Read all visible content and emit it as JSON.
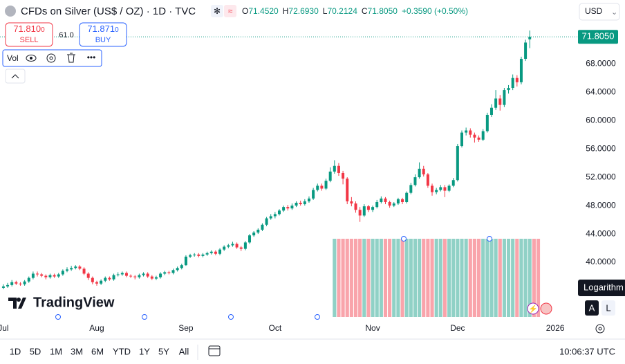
{
  "header": {
    "title": "CFDs on Silver (US$ / OZ) · 1D · TVC",
    "ohlc": [
      {
        "key": "O",
        "value": "71.4520"
      },
      {
        "key": "H",
        "value": "72.6930"
      },
      {
        "key": "L",
        "value": "70.2124"
      },
      {
        "key": "C",
        "value": "71.8050"
      }
    ],
    "change": "+0.3590 (+0.50%)",
    "currency": "USD"
  },
  "trade": {
    "sell_price": "71.810",
    "sell_price_small": "0",
    "sell_label": "SELL",
    "spread": "61.0",
    "buy_price": "71.871",
    "buy_price_small": "0",
    "buy_label": "BUY"
  },
  "legend": {
    "volume_label": "Vol"
  },
  "logo": "TradingView",
  "scale_buttons": {
    "tooltip": "Logarithm",
    "auto": "A",
    "log": "L"
  },
  "toolbar": {
    "ranges": [
      "1D",
      "5D",
      "1M",
      "3M",
      "6M",
      "YTD",
      "1Y",
      "5Y",
      "All"
    ],
    "clock": "10:06:37 UTC"
  },
  "chart_data": {
    "type": "candlestick",
    "up_color": "#089981",
    "down_color": "#f23645",
    "grid": false,
    "open": [
      36.4,
      36.6,
      36.8,
      37.2,
      37.0,
      36.9,
      37.3,
      37.8,
      38.4,
      38.3,
      38.1,
      37.9,
      38.2,
      38.0,
      38.3,
      38.8,
      39.0,
      39.2,
      39.4,
      39.1,
      38.4,
      37.8,
      37.2,
      37.0,
      37.4,
      37.8,
      37.6,
      38.2,
      38.3,
      38.5,
      38.1,
      38.0,
      37.9,
      38.2,
      38.4,
      38.0,
      37.7,
      37.9,
      38.4,
      38.6,
      38.5,
      38.9,
      39.2,
      39.6,
      40.8,
      41.0,
      41.1,
      40.9,
      41.1,
      41.3,
      41.5,
      41.2,
      41.8,
      42.2,
      42.4,
      42.6,
      42.1,
      41.9,
      42.8,
      43.8,
      44.2,
      44.6,
      45.3,
      46.2,
      46.5,
      46.8,
      47.3,
      47.8,
      47.6,
      48.0,
      48.4,
      48.2,
      48.6,
      49.0,
      50.2,
      50.8,
      50.4,
      51.5,
      52.8,
      53.6,
      52.6,
      51.8,
      48.6,
      48.3,
      47.4,
      46.6,
      47.9,
      47.4,
      47.8,
      48.5,
      49.0,
      48.5,
      48.0,
      48.3,
      48.9,
      48.5,
      49.8,
      50.9,
      52.0,
      53.2,
      52.4,
      50.8,
      49.9,
      50.2,
      50.6,
      50.1,
      50.8,
      51.6,
      56.4,
      58.3,
      58.6,
      58.0,
      57.6,
      57.3,
      58.5,
      60.8,
      61.8,
      63.1,
      62.2,
      64.3,
      64.6,
      66.0,
      65.4,
      68.7,
      71.452
    ],
    "high": [
      36.9,
      37.1,
      37.5,
      37.4,
      37.2,
      37.5,
      38.0,
      38.7,
      38.7,
      38.5,
      38.3,
      38.4,
      38.4,
      38.5,
      39.0,
      39.3,
      39.5,
      39.6,
      39.6,
      39.3,
      38.6,
      38.0,
      37.4,
      37.6,
      38.0,
      38.0,
      38.4,
      38.6,
      38.7,
      38.7,
      38.3,
      38.2,
      38.4,
      38.6,
      38.6,
      38.2,
      38.1,
      38.6,
      38.8,
      38.8,
      39.1,
      39.4,
      39.8,
      41.0,
      41.2,
      41.3,
      41.3,
      41.3,
      41.5,
      41.7,
      41.7,
      42.0,
      42.4,
      42.6,
      42.9,
      42.8,
      42.3,
      43.0,
      44.0,
      44.4,
      44.8,
      45.5,
      46.4,
      46.8,
      47.1,
      47.5,
      48.0,
      48.1,
      48.3,
      48.6,
      48.7,
      48.9,
      49.3,
      50.5,
      51.1,
      51.1,
      51.8,
      53.4,
      54.4,
      54.0,
      52.9,
      52.0,
      49.2,
      48.6,
      47.8,
      48.2,
      48.1,
      48.0,
      48.8,
      49.3,
      49.2,
      48.7,
      48.5,
      49.1,
      49.1,
      50.0,
      51.2,
      52.4,
      54.1,
      53.6,
      52.6,
      51.1,
      50.5,
      50.9,
      50.9,
      51.0,
      51.9,
      56.7,
      58.6,
      59.0,
      58.9,
      58.3,
      57.9,
      58.8,
      61.1,
      62.3,
      64.3,
      63.6,
      64.6,
      65.0,
      66.5,
      66.4,
      69.0,
      71.4,
      72.693
    ],
    "low": [
      36.2,
      36.4,
      36.6,
      36.8,
      36.7,
      36.7,
      37.1,
      37.6,
      38.0,
      37.9,
      37.6,
      37.7,
      37.8,
      37.8,
      38.1,
      38.6,
      38.8,
      39.0,
      38.9,
      38.2,
      37.5,
      36.9,
      36.7,
      36.8,
      37.2,
      37.4,
      37.4,
      38.0,
      38.1,
      37.9,
      37.8,
      37.6,
      37.7,
      38.0,
      37.8,
      37.5,
      37.5,
      37.7,
      38.2,
      38.3,
      38.3,
      38.7,
      39.0,
      39.5,
      40.6,
      40.8,
      40.7,
      40.7,
      40.9,
      41.1,
      41.0,
      41.0,
      41.6,
      42.0,
      42.2,
      41.9,
      41.6,
      41.7,
      42.6,
      43.6,
      44.0,
      44.4,
      45.1,
      46.0,
      46.2,
      46.6,
      47.1,
      47.3,
      47.4,
      47.8,
      48.0,
      48.0,
      48.4,
      48.8,
      50.0,
      50.1,
      50.2,
      51.3,
      52.5,
      52.2,
      51.0,
      48.2,
      47.9,
      47.0,
      45.7,
      46.4,
      47.1,
      47.1,
      47.6,
      48.3,
      48.2,
      47.7,
      47.8,
      48.1,
      48.2,
      48.3,
      49.6,
      50.7,
      51.8,
      52.1,
      50.5,
      49.4,
      49.6,
      50.0,
      49.2,
      49.9,
      50.6,
      51.4,
      56.2,
      57.9,
      57.6,
      56.9,
      57.0,
      57.1,
      58.3,
      60.5,
      61.5,
      61.4,
      61.9,
      63.8,
      64.3,
      64.8,
      65.1,
      68.4,
      70.2124
    ],
    "close": [
      36.6,
      36.8,
      37.2,
      37.0,
      36.9,
      37.3,
      37.8,
      38.4,
      38.3,
      38.1,
      37.9,
      38.2,
      38.0,
      38.3,
      38.8,
      39.0,
      39.2,
      39.4,
      39.1,
      38.4,
      37.8,
      37.2,
      37.0,
      37.4,
      37.8,
      37.6,
      38.2,
      38.3,
      38.5,
      38.1,
      38.0,
      37.9,
      38.2,
      38.4,
      38.0,
      37.7,
      37.9,
      38.4,
      38.6,
      38.5,
      38.9,
      39.2,
      39.6,
      40.8,
      41.0,
      41.1,
      40.9,
      41.1,
      41.3,
      41.5,
      41.2,
      41.8,
      42.2,
      42.4,
      42.6,
      42.1,
      41.9,
      42.8,
      43.8,
      44.2,
      44.6,
      45.3,
      46.2,
      46.5,
      46.8,
      47.3,
      47.8,
      47.6,
      48.0,
      48.4,
      48.2,
      48.6,
      49.0,
      50.2,
      50.8,
      50.4,
      51.5,
      52.8,
      53.6,
      52.6,
      51.8,
      48.6,
      48.3,
      47.4,
      46.6,
      47.9,
      47.4,
      47.8,
      48.5,
      49.0,
      48.5,
      48.0,
      48.3,
      48.9,
      48.5,
      49.8,
      50.9,
      52.0,
      53.2,
      52.4,
      50.8,
      49.9,
      50.2,
      50.6,
      50.1,
      50.8,
      51.6,
      56.4,
      58.3,
      58.6,
      58.0,
      57.6,
      57.3,
      58.5,
      60.8,
      61.8,
      63.1,
      62.2,
      64.3,
      64.6,
      66.0,
      65.4,
      68.7,
      71.0,
      71.805
    ],
    "volume": {
      "values": [
        null,
        null,
        null,
        null,
        null,
        null,
        null,
        null,
        null,
        null,
        null,
        null,
        null,
        null,
        null,
        null,
        null,
        null,
        null,
        null,
        null,
        null,
        null,
        null,
        null,
        null,
        null,
        null,
        null,
        null,
        null,
        null,
        null,
        null,
        null,
        null,
        null,
        null,
        null,
        null,
        null,
        null,
        null,
        null,
        null,
        null,
        null,
        null,
        null,
        null,
        null,
        null,
        null,
        null,
        null,
        null,
        null,
        null,
        null,
        null,
        null,
        null,
        null,
        null,
        null,
        null,
        null,
        null,
        null,
        null,
        null,
        null,
        null,
        null,
        null,
        null,
        null,
        null,
        100,
        100,
        100,
        100,
        100,
        100,
        100,
        100,
        100,
        100,
        100,
        100,
        100,
        100,
        100,
        100,
        100,
        100,
        100,
        100,
        100,
        100,
        100,
        100,
        100,
        100,
        100,
        100,
        100,
        100,
        100,
        100,
        100,
        100,
        100,
        100,
        100,
        100,
        100,
        100,
        100,
        100,
        100,
        100,
        100,
        100,
        100,
        100,
        100
      ]
    },
    "xlim": [
      -0.8,
      135.2
    ],
    "xticks": [
      {
        "value": 0,
        "label": "Jul"
      },
      {
        "value": 22,
        "label": "Aug"
      },
      {
        "value": 43,
        "label": "Sep"
      },
      {
        "value": 64,
        "label": "Oct"
      },
      {
        "value": 87,
        "label": "Nov"
      },
      {
        "value": 107,
        "label": "Dec"
      },
      {
        "value": 130,
        "label": "2026"
      }
    ],
    "ylim": [
      32.1,
      77.0
    ],
    "yticks": [
      {
        "value": 40,
        "label": "40.0000"
      },
      {
        "value": 44,
        "label": "44.0000"
      },
      {
        "value": 48,
        "label": "48.0000"
      },
      {
        "value": 52,
        "label": "52.0000"
      },
      {
        "value": 56,
        "label": "56.0000"
      },
      {
        "value": 60,
        "label": "60.0000"
      },
      {
        "value": 64,
        "label": "64.0000"
      },
      {
        "value": 68,
        "label": "68.0000"
      }
    ],
    "last_price": {
      "value": 71.805,
      "label": "71.8050"
    }
  }
}
